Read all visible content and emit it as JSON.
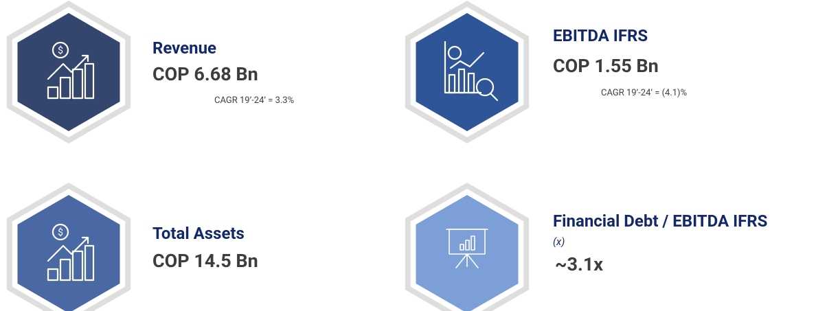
{
  "kpis": [
    {
      "title": "Revenue",
      "value": "COP 6.68 Bn",
      "note": "CAGR 19’-24’ = 3.3%"
    },
    {
      "title": "EBITDA IFRS",
      "value": "COP 1.55 Bn",
      "note": "CAGR 19’-24’ = (4.1)%"
    },
    {
      "title": "Total Assets",
      "value": "COP 14.5 Bn"
    },
    {
      "title": "Financial Debt / EBITDA IFRS",
      "subtitle": "(x)",
      "value": "~3.1x"
    }
  ]
}
